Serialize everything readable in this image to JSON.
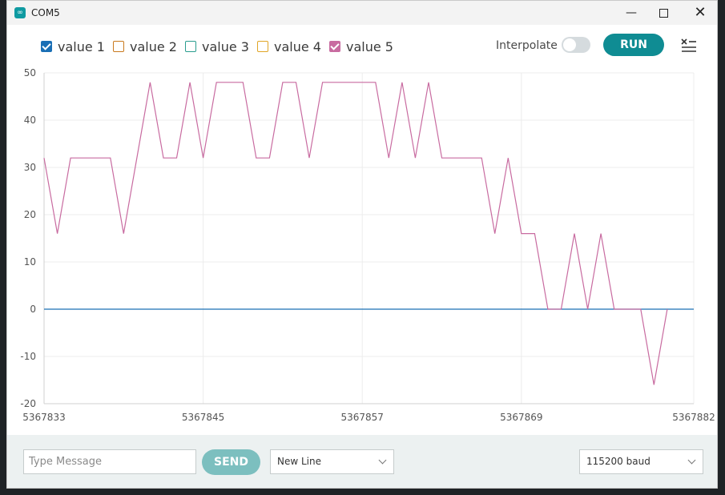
{
  "window": {
    "title": "COM5"
  },
  "titlebar": {
    "minimize": "—",
    "close": "✕"
  },
  "toolbar": {
    "series": [
      {
        "label": "value 1",
        "checked": true,
        "color": "#1a6fb5"
      },
      {
        "label": "value 2",
        "checked": false,
        "color": "#c97a1e"
      },
      {
        "label": "value 3",
        "checked": false,
        "color": "#2a9d8f"
      },
      {
        "label": "value 4",
        "checked": false,
        "color": "#e0a526"
      },
      {
        "label": "value 5",
        "checked": true,
        "color": "#c86ba0"
      }
    ],
    "interpolate_label": "Interpolate",
    "interpolate_on": false,
    "run_label": "RUN",
    "clear_icon": "clear-list-icon"
  },
  "chart_data": {
    "type": "line",
    "ylim": [
      -20,
      50
    ],
    "yticks": [
      50,
      40,
      30,
      20,
      10,
      0,
      -10,
      -20
    ],
    "xlim": [
      5367833,
      5367882
    ],
    "xticks": [
      5367833,
      5367845,
      5367857,
      5367869,
      5367882
    ],
    "grid": true,
    "series": [
      {
        "name": "value 1",
        "color": "#1a6fb5",
        "x": [
          5367833,
          5367882
        ],
        "values": [
          0,
          0
        ]
      },
      {
        "name": "value 5",
        "color": "#c86ba0",
        "x": [
          5367833,
          5367834,
          5367835,
          5367838,
          5367839,
          5367841,
          5367842,
          5367843,
          5367844,
          5367845,
          5367846,
          5367848,
          5367849,
          5367850,
          5367851,
          5367852,
          5367853,
          5367854,
          5367855,
          5367858,
          5367859,
          5367860,
          5367861,
          5367862,
          5367863,
          5367866,
          5367867,
          5367868,
          5367869,
          5367870,
          5367871,
          5367872,
          5367873,
          5367874,
          5367875,
          5367876,
          5367877,
          5367878,
          5367879,
          5367880
        ],
        "values": [
          32,
          16,
          32,
          32,
          16,
          48,
          32,
          32,
          48,
          32,
          48,
          48,
          32,
          32,
          48,
          48,
          32,
          48,
          48,
          48,
          32,
          48,
          32,
          48,
          32,
          32,
          16,
          32,
          16,
          16,
          0,
          0,
          16,
          0,
          16,
          0,
          0,
          0,
          -16,
          0
        ]
      }
    ]
  },
  "bottombar": {
    "message_placeholder": "Type Message",
    "send_label": "SEND",
    "line_ending": "New Line",
    "baud_rate": "115200 baud"
  }
}
